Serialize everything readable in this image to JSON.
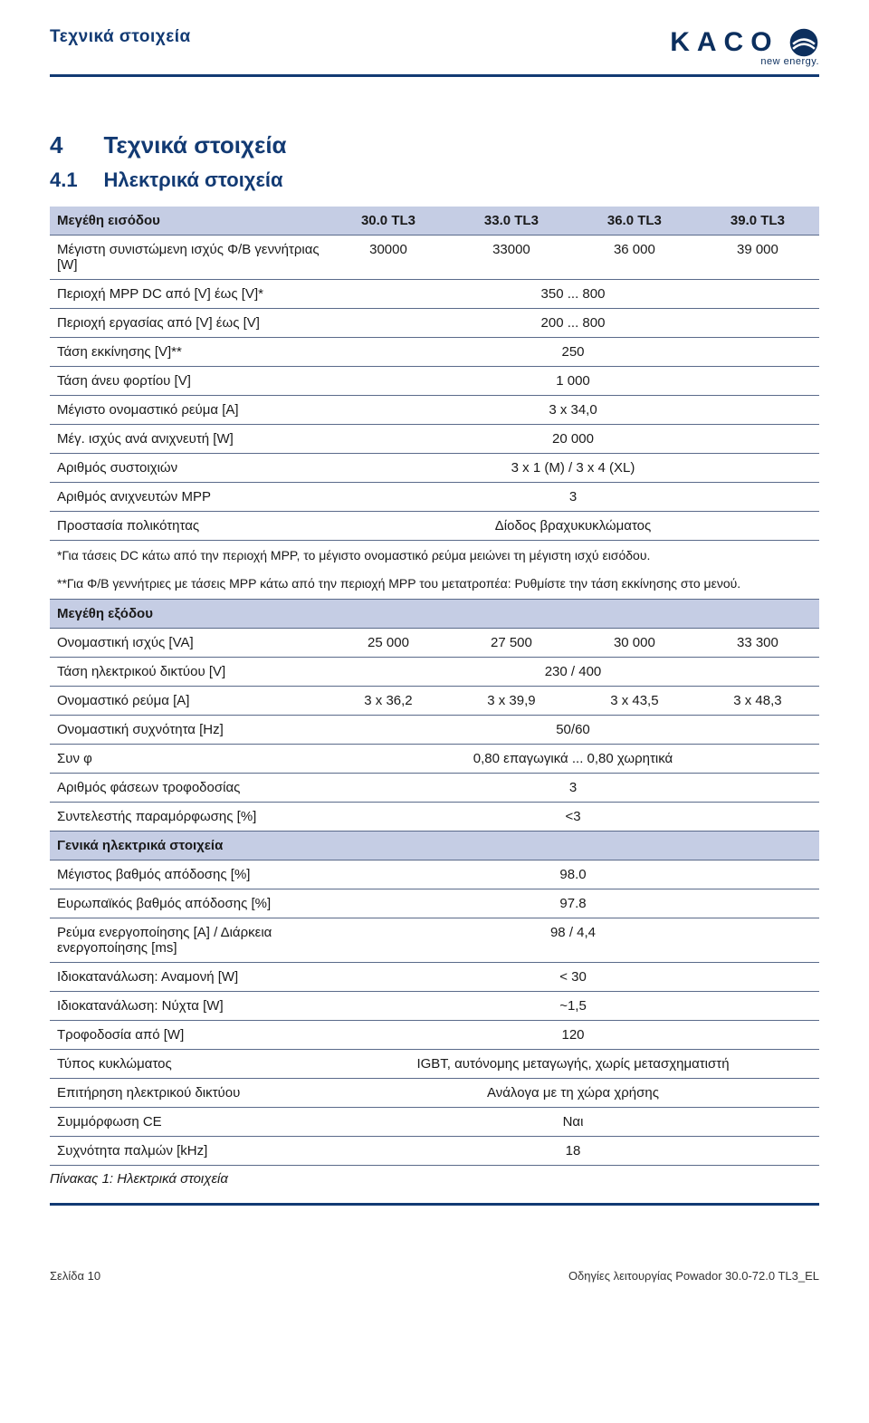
{
  "header": {
    "breadcrumb": "Τεχνικά στοιχεία",
    "logo_text": "KACO",
    "logo_tagline": "new energy."
  },
  "section": {
    "num": "4",
    "title": "Τεχνικά στοιχεία"
  },
  "subsection": {
    "num": "4.1",
    "title": "Ηλεκτρικά στοιχεία"
  },
  "colors": {
    "brand": "#123a73",
    "header_bg": "#c5cde4",
    "row_border": "#5a6a8a"
  },
  "table": {
    "input_header": "Μεγέθη εισόδου",
    "cols": [
      "30.0 TL3",
      "33.0 TL3",
      "36.0 TL3",
      "39.0 TL3"
    ],
    "input_rows": [
      {
        "label": "Μέγιστη συνιστώμενη ισχύς Φ/Β γεννήτριας [W]",
        "vals": [
          "30000",
          "33000",
          "36 000",
          "39 000"
        ]
      },
      {
        "label": "Περιοχή MPP DC από [V] έως [V]*",
        "span": "350 ... 800"
      },
      {
        "label": "Περιοχή εργασίας από [V] έως [V]",
        "span": "200 ... 800"
      },
      {
        "label": "Τάση εκκίνησης [V]**",
        "span": "250"
      },
      {
        "label": "Τάση άνευ φορτίου [V]",
        "span": "1 000"
      },
      {
        "label": "Μέγιστο ονομαστικό ρεύμα [A]",
        "span": "3 x 34,0"
      },
      {
        "label": "Μέγ. ισχύς ανά ανιχνευτή [W]",
        "span": "20 000"
      },
      {
        "label": "Αριθμός συστοιχιών",
        "span": "3 x 1 (M) / 3 x 4 (XL)"
      },
      {
        "label": "Αριθμός ανιχνευτών MPP",
        "span": "3"
      },
      {
        "label": "Προστασία πολικότητας",
        "span": "Δίοδος βραχυκυκλώματος"
      }
    ],
    "note1": "*Για τάσεις DC κάτω από την περιοχή MPP, το μέγιστο ονομαστικό ρεύμα μειώνει τη μέγιστη ισχύ εισόδου.",
    "note2": "**Για Φ/Β γεννήτριες με τάσεις MPP κάτω από την περιοχή MPP του μετατροπέα: Ρυθμίστε την τάση εκκίνησης στο μενού.",
    "output_header": "Μεγέθη εξόδου",
    "output_rows": [
      {
        "label": "Ονομαστική ισχύς [VA]",
        "vals": [
          "25 000",
          "27 500",
          "30 000",
          "33 300"
        ]
      },
      {
        "label": "Τάση ηλεκτρικού δικτύου [V]",
        "span": "230 / 400"
      },
      {
        "label": "Ονομαστικό ρεύμα [A]",
        "vals": [
          "3 x 36,2",
          "3 x 39,9",
          "3 x 43,5",
          "3 x 48,3"
        ]
      },
      {
        "label": "Ονομαστική συχνότητα [Hz]",
        "span": "50/60"
      },
      {
        "label": "Συν φ",
        "span": "0,80 επαγωγικά ... 0,80 χωρητικά"
      },
      {
        "label": "Αριθμός φάσεων τροφοδοσίας",
        "span": "3"
      },
      {
        "label": "Συντελεστής παραμόρφωσης [%]",
        "span": "<3"
      }
    ],
    "general_header": "Γενικά ηλεκτρικά στοιχεία",
    "general_rows": [
      {
        "label": "Μέγιστος βαθμός απόδοσης [%]",
        "span": "98.0"
      },
      {
        "label": "Ευρωπαϊκός βαθμός απόδοσης [%]",
        "span": "97.8"
      },
      {
        "label": "Ρεύμα ενεργοποίησης [A] / Διάρκεια ενεργοποίησης [ms]",
        "span": "98 / 4,4"
      },
      {
        "label": "Ιδιοκατανάλωση: Αναμονή [W]",
        "span": "< 30"
      },
      {
        "label": "Ιδιοκατανάλωση: Νύχτα [W]",
        "span": "~1,5"
      },
      {
        "label": "Τροφοδοσία από [W]",
        "span": "120"
      },
      {
        "label": "Τύπος κυκλώματος",
        "span": "IGBT, αυτόνομης μεταγωγής, χωρίς μετασχηματιστή"
      },
      {
        "label": "Επιτήρηση ηλεκτρικού δικτύου",
        "span": "Ανάλογα με τη χώρα χρήσης"
      },
      {
        "label": "Συμμόρφωση CE",
        "span": "Ναι"
      },
      {
        "label": "Συχνότητα παλμών [kHz]",
        "span": "18"
      }
    ],
    "caption": "Πίνακας 1:  Ηλεκτρικά στοιχεία"
  },
  "footer": {
    "left": "Σελίδα 10",
    "right": "Οδηγίες λειτουργίας Powador 30.0-72.0 TL3_EL"
  }
}
